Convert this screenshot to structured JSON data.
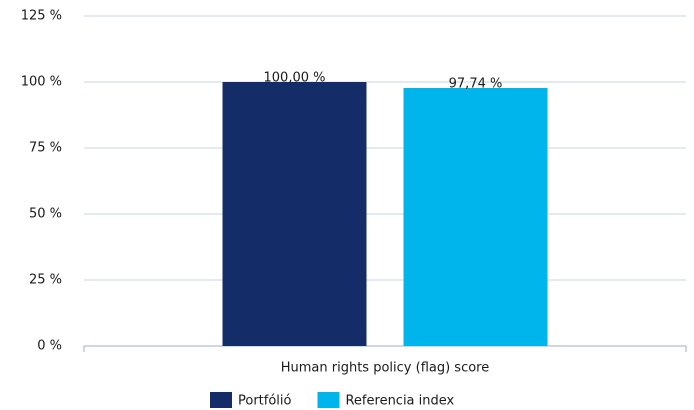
{
  "chart_data": {
    "type": "bar",
    "categories": [
      "Human rights policy (flag) score"
    ],
    "series": [
      {
        "name": "Portfólió",
        "color": "#142d69",
        "values": [
          100.0
        ],
        "value_labels": [
          "100,00 %"
        ]
      },
      {
        "name": "Referencia index",
        "color": "#00b5ec",
        "values": [
          97.74
        ],
        "value_labels": [
          "97,74 %"
        ]
      }
    ],
    "ylim": [
      0,
      125
    ],
    "yticks": [
      {
        "value": 0,
        "label": "0 %"
      },
      {
        "value": 25,
        "label": "25 %"
      },
      {
        "value": 50,
        "label": "50 %"
      },
      {
        "value": 75,
        "label": "75 %"
      },
      {
        "value": 100,
        "label": "100 %"
      },
      {
        "value": 125,
        "label": "125 %"
      }
    ],
    "grid": true,
    "legend": "bottom"
  }
}
